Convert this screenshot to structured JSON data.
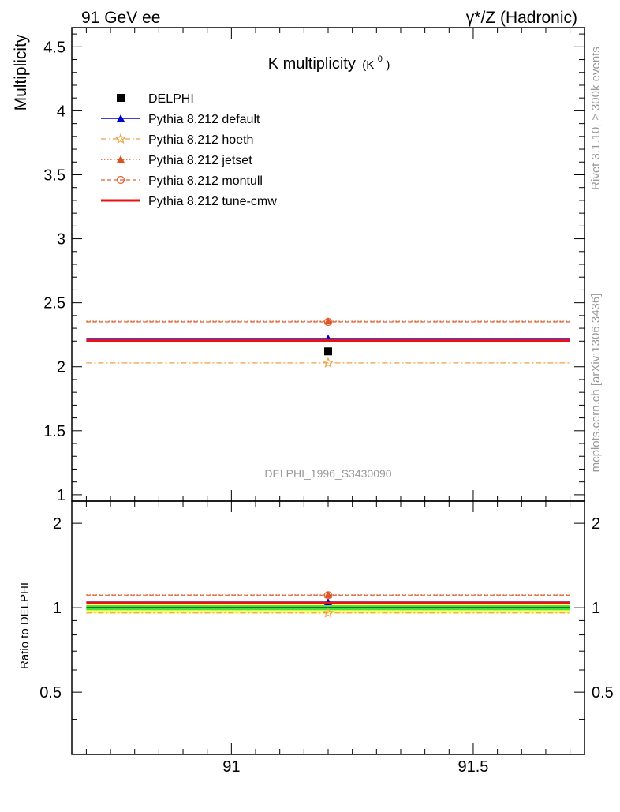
{
  "header": {
    "left_label": "91 GeV ee",
    "right_label": "γ*/Z (Hadronic)"
  },
  "side_labels": {
    "rivet": "Rivet 3.1.10, ≥ 300k events",
    "mcplots": "mcplots.cern.ch [arXiv:1306.3436]"
  },
  "colors": {
    "data": "#000000",
    "default": "#0000cc",
    "hoeth": "#f0a040",
    "jetset": "#e0501a",
    "montull": "#e06030",
    "tune_cmw": "#ee1111",
    "band_inner": "#44dd44",
    "band_outer": "#ffff66"
  },
  "chart_data": [
    {
      "type": "scatter",
      "title_main": "K multiplicity",
      "title_sub": "(K",
      "title_sup": "0",
      "title_close": ")",
      "ylabel": "Multiplicity",
      "analysis_label": "DELPHI_1996_S3430090",
      "xlim": [
        90.67,
        91.73
      ],
      "ylim": [
        0.95,
        4.65
      ],
      "yticks": [
        "1",
        "1.5",
        "2",
        "2.5",
        "3",
        "3.5",
        "4",
        "4.5"
      ],
      "x_point": 91.2,
      "x_range": [
        90.7,
        91.7
      ],
      "series": [
        {
          "key": "data",
          "name": "DELPHI",
          "value": 2.12,
          "marker": "square",
          "style": "none"
        },
        {
          "key": "default",
          "name": "Pythia 8.212 default",
          "value": 2.22,
          "marker": "triangle",
          "style": "solid"
        },
        {
          "key": "hoeth",
          "name": "Pythia 8.212 hoeth",
          "value": 2.03,
          "marker": "star",
          "style": "dashdot"
        },
        {
          "key": "jetset",
          "name": "Pythia 8.212 jetset",
          "value": 2.355,
          "marker": "triangle",
          "style": "dotted"
        },
        {
          "key": "montull",
          "name": "Pythia 8.212 montull",
          "value": 2.35,
          "marker": "circle",
          "style": "dashed"
        },
        {
          "key": "tune_cmw",
          "name": "Pythia 8.212 tune-cmw",
          "value": 2.205,
          "marker": "none",
          "style": "thick"
        }
      ]
    },
    {
      "type": "scatter",
      "ylabel": "Ratio to DELPHI",
      "xlim": [
        90.67,
        91.73
      ],
      "ylim": [
        0.3,
        2.4
      ],
      "xticks": [
        "91",
        "91.5"
      ],
      "yticks": [
        "0.5",
        "1",
        "2"
      ],
      "band_inner": [
        0.98,
        1.02
      ],
      "band_outer": [
        0.955,
        1.045
      ],
      "series": [
        {
          "key": "default",
          "value": 1.047
        },
        {
          "key": "hoeth",
          "value": 0.958
        },
        {
          "key": "jetset",
          "value": 1.111
        },
        {
          "key": "montull",
          "value": 1.108
        },
        {
          "key": "tune_cmw",
          "value": 1.04
        }
      ]
    }
  ]
}
